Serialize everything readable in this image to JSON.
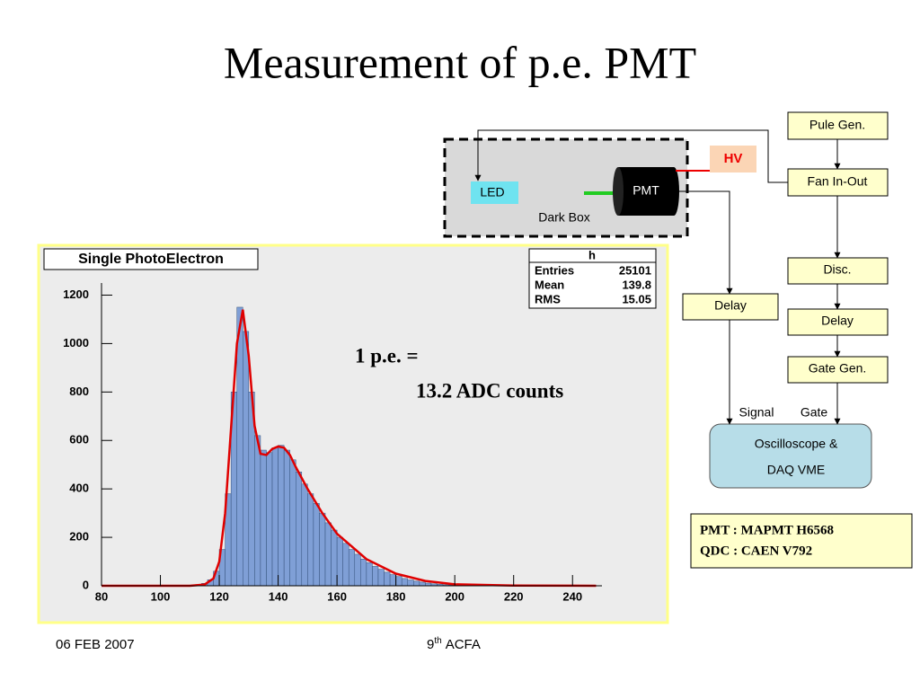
{
  "slide": {
    "title": "Measurement of p.e. PMT",
    "annotation": [
      "1 p.e. =",
      "13.2 ADC counts"
    ],
    "diagram": {
      "dark_box": "Dark Box",
      "led": "LED",
      "pmt": "PMT",
      "hv": "HV",
      "pulse_gen": "Pule Gen.",
      "fan": "Fan In-Out",
      "disc": "Disc.",
      "delay_right": "Delay",
      "gate_gen": "Gate Gen.",
      "delay_left": "Delay",
      "signal": "Signal",
      "gate": "Gate",
      "scope": [
        "Oscilloscope &",
        "DAQ VME"
      ]
    },
    "info": [
      "PMT : MAPMT H6568",
      "QDC : CAEN V792"
    ],
    "footer_left": "06 FEB 2007",
    "footer_center": {
      "number": "9",
      "suffix": "th",
      "text": "ACFA"
    }
  },
  "chart_data": {
    "type": "histogram",
    "title": "Single PhotoElectron",
    "color": "#7f9fd6",
    "bins": [
      110,
      112,
      114,
      116,
      118,
      120,
      122,
      124,
      126,
      128,
      130,
      132,
      134,
      136,
      138,
      140,
      142,
      144,
      146,
      148,
      150,
      152,
      154,
      156,
      158,
      160,
      162,
      164,
      166,
      168,
      170,
      172,
      174,
      176,
      178,
      180,
      182,
      184,
      186,
      188,
      190,
      192,
      194,
      196,
      198,
      200
    ],
    "counts": [
      2,
      5,
      10,
      25,
      60,
      150,
      380,
      800,
      1150,
      1050,
      800,
      620,
      560,
      550,
      570,
      580,
      560,
      520,
      470,
      420,
      380,
      340,
      300,
      260,
      230,
      200,
      175,
      150,
      130,
      110,
      95,
      80,
      68,
      56,
      46,
      38,
      30,
      24,
      19,
      15,
      11,
      8,
      6,
      4,
      3
    ],
    "fit": {
      "color": "#e00000",
      "x": [
        80,
        110,
        115,
        118,
        120,
        122,
        124,
        126,
        128,
        130,
        132,
        134,
        136,
        138,
        140,
        142,
        144,
        146,
        150,
        155,
        160,
        170,
        180,
        190,
        200,
        220,
        248
      ],
      "values": [
        0,
        0,
        5,
        30,
        100,
        300,
        650,
        1000,
        1140,
        950,
        660,
        545,
        540,
        565,
        575,
        570,
        540,
        490,
        400,
        300,
        215,
        110,
        50,
        20,
        6,
        1,
        0
      ]
    },
    "xlim": [
      80,
      250
    ],
    "ylim": [
      0,
      1250
    ],
    "xticks": [
      80,
      100,
      120,
      140,
      160,
      180,
      200,
      220,
      240
    ],
    "yticks": [
      0,
      200,
      400,
      600,
      800,
      1000,
      1200
    ],
    "stats": {
      "name": "h",
      "rows": [
        [
          "Entries",
          "25101"
        ],
        [
          "Mean",
          "139.8"
        ],
        [
          "RMS",
          "15.05"
        ]
      ]
    }
  }
}
